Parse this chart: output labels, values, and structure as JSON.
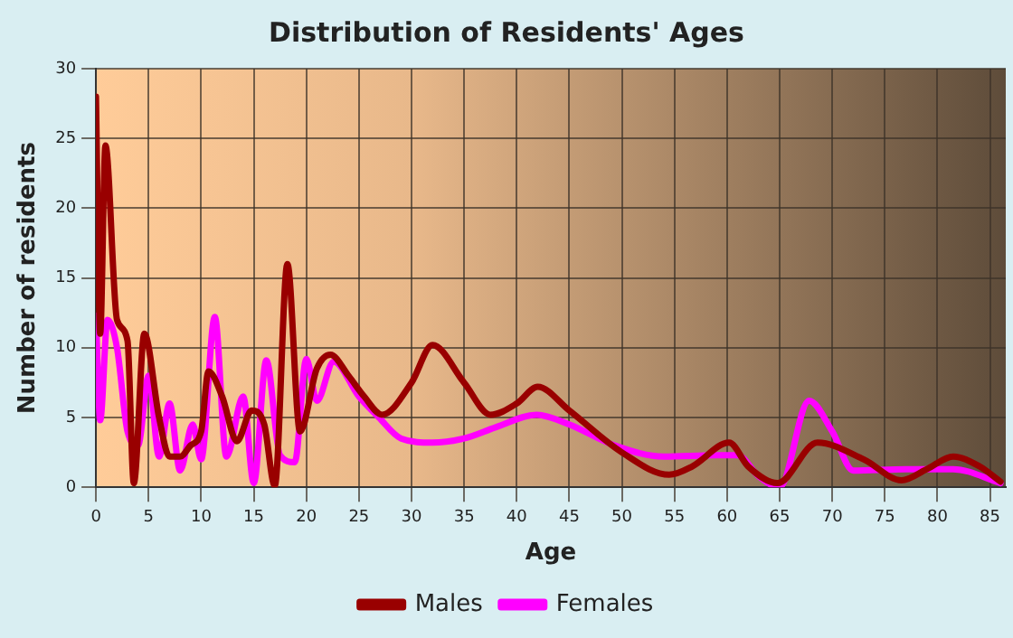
{
  "chart_data": {
    "type": "line",
    "title": "Distribution of Residents' Ages",
    "xlabel": "Age",
    "ylabel": "Number of residents",
    "xlim": [
      0,
      86.5
    ],
    "xticks": [
      0,
      5,
      10,
      15,
      20,
      25,
      30,
      35,
      40,
      45,
      50,
      55,
      60,
      65,
      70,
      75,
      80,
      85
    ],
    "ylim": [
      0,
      30
    ],
    "yticks": [
      0,
      5,
      10,
      15,
      20,
      25,
      30
    ],
    "grid": true,
    "legend": "bottom",
    "marker": "none",
    "line_style": "solid",
    "series": [
      {
        "name": "Males",
        "color": "#990000",
        "x": [
          0,
          0.4,
          0.9,
          2,
          3,
          3.6,
          4.6,
          6,
          7,
          8,
          9,
          10,
          10.7,
          12,
          13.4,
          14.8,
          16,
          17,
          18.2,
          19.4,
          21,
          22.3,
          24,
          25.5,
          27.2,
          30,
          32,
          35,
          37.5,
          40,
          42,
          45,
          50,
          54.5,
          56.7,
          60.2,
          62,
          64.8,
          68.6,
          73,
          76.6,
          79,
          81.5,
          84,
          86
        ],
        "values": [
          28,
          11,
          24.5,
          12,
          10.5,
          0.3,
          11,
          5,
          2.2,
          2.2,
          3,
          4,
          8.3,
          6.5,
          3.3,
          5.5,
          4.5,
          0.1,
          16,
          4,
          8.5,
          9.5,
          8,
          6.5,
          5.2,
          7.5,
          10.2,
          7.5,
          5.2,
          6,
          7.2,
          5.5,
          2.5,
          0.9,
          1.5,
          3.2,
          1.5,
          0.3,
          3.2,
          2,
          0.5,
          1.3,
          2.2,
          1.5,
          0.4
        ]
      },
      {
        "name": "Females",
        "color": "#ff00ff",
        "x": [
          0,
          0.4,
          1.1,
          2,
          3,
          4,
          5,
          6,
          7,
          8,
          9.2,
          10,
          11.3,
          12.4,
          14,
          15,
          16.2,
          17.5,
          18.9,
          20,
          21,
          22.6,
          25,
          26.9,
          29,
          32,
          35,
          38,
          41.9,
          45,
          49.3,
          54,
          59,
          61,
          63,
          65,
          67.8,
          70,
          72,
          77,
          81.5,
          86
        ],
        "values": [
          12.3,
          4.8,
          12,
          10,
          4,
          3,
          8,
          2.2,
          6,
          1.2,
          4.5,
          2,
          12.2,
          2.2,
          6.5,
          0.3,
          9.1,
          2.3,
          1.8,
          9.2,
          6.2,
          9,
          6.5,
          5,
          3.5,
          3.2,
          3.5,
          4.3,
          5.2,
          4.5,
          3,
          2.2,
          2.3,
          2.3,
          0.8,
          0,
          6.2,
          4,
          1.2,
          1.3,
          1.3,
          0.3
        ]
      }
    ]
  }
}
